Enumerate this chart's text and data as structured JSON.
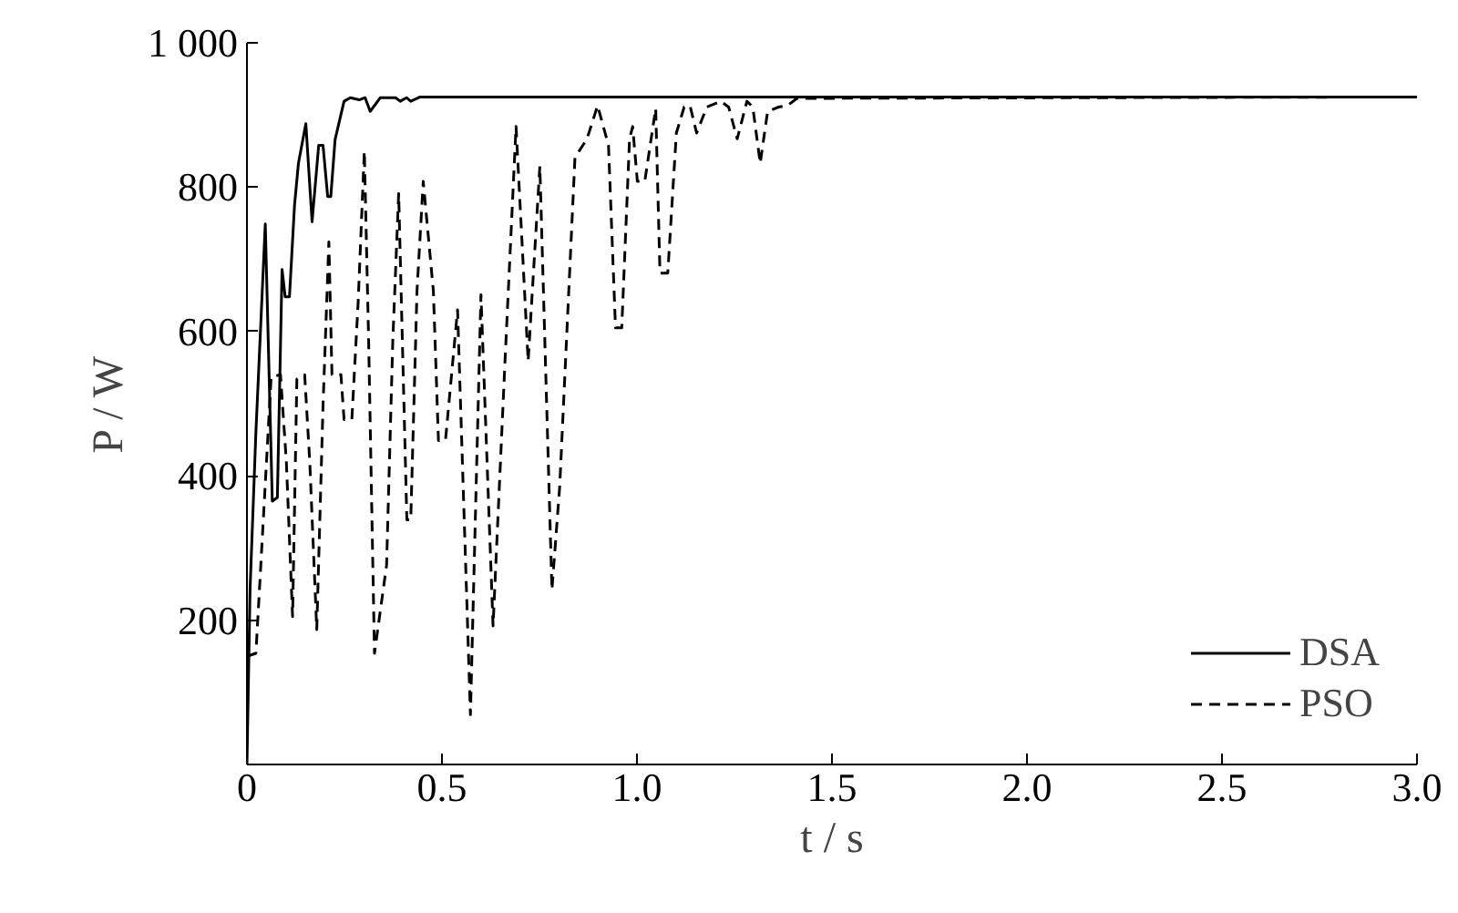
{
  "chart_data": {
    "type": "line",
    "xlabel": "t / s",
    "ylabel": "P / W",
    "xlim": [
      0,
      3
    ],
    "ylim": [
      0,
      1000
    ],
    "xticks": [
      0,
      0.5,
      {
        "value": 1,
        "label": "1.0"
      },
      1.5,
      {
        "value": 2,
        "label": "2.0"
      },
      2.5,
      {
        "value": 3,
        "label": "3.0"
      }
    ],
    "yticks": [
      200,
      400,
      600,
      800,
      {
        "value": 1000,
        "label": "1 000"
      }
    ],
    "grid": false,
    "legend": "bottom right",
    "marker": "none",
    "series": [
      {
        "name": "DSA",
        "color": "#000000",
        "line_style": "solid",
        "x": [
          0,
          0.008,
          0.023,
          0.047,
          0.065,
          0.078,
          0.09,
          0.098,
          0.109,
          0.122,
          0.132,
          0.151,
          0.167,
          0.184,
          0.195,
          0.207,
          0.215,
          0.226,
          0.249,
          0.265,
          0.288,
          0.303,
          0.316,
          0.342,
          0.381,
          0.393,
          0.409,
          0.42,
          0.444,
          3.0
        ],
        "values": [
          0,
          243,
          461,
          749,
          365,
          370,
          686,
          648,
          648,
          775,
          833,
          888,
          752,
          858,
          858,
          787,
          787,
          866,
          919,
          924,
          921,
          924,
          905,
          924,
          924,
          919,
          924,
          919,
          925,
          925
        ]
      },
      {
        "name": "PSO",
        "color": "#000000",
        "line_style": "dashed",
        "x": [
          0,
          0.023,
          0.039,
          0.062,
          0.086,
          0.101,
          0.117,
          0.128,
          0.148,
          0.161,
          0.179,
          0.195,
          0.21,
          0.218,
          0.241,
          0.249,
          0.269,
          0.285,
          0.301,
          0.312,
          0.327,
          0.358,
          0.374,
          0.389,
          0.41,
          0.42,
          0.436,
          0.452,
          0.478,
          0.491,
          0.509,
          0.54,
          0.573,
          0.6,
          0.631,
          0.662,
          0.69,
          0.721,
          0.751,
          0.782,
          0.802,
          0.841,
          0.872,
          0.899,
          0.927,
          0.945,
          0.961,
          0.981,
          0.989,
          1.001,
          1.02,
          1.048,
          1.059,
          1.079,
          1.101,
          1.121,
          1.136,
          1.153,
          1.179,
          1.215,
          1.235,
          1.257,
          1.282,
          1.297,
          1.316,
          1.335,
          1.363,
          1.386,
          1.41,
          3.0
        ],
        "values": [
          150,
          154,
          310,
          537,
          540,
          420,
          205,
          534,
          540,
          420,
          187,
          496,
          724,
          540,
          540,
          478,
          478,
          639,
          850,
          588,
          154,
          276,
          588,
          791,
          339,
          339,
          656,
          808,
          656,
          449,
          449,
          630,
          69,
          651,
          192,
          563,
          884,
          559,
          829,
          242,
          386,
          841,
          867,
          913,
          858,
          605,
          605,
          867,
          884,
          808,
          808,
          909,
          681,
          681,
          875,
          911,
          913,
          875,
          911,
          919,
          911,
          867,
          919,
          911,
          833,
          905,
          911,
          913,
          923,
          925
        ]
      }
    ]
  }
}
